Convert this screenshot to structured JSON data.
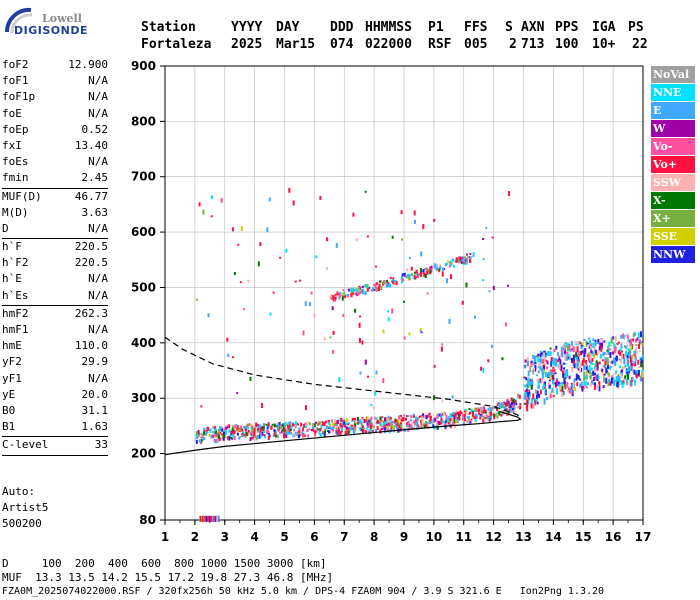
{
  "logo": {
    "line1": "Lowell",
    "line2": "DIGISONDE"
  },
  "header": {
    "labels": [
      "Station",
      "YYYY",
      "DAY",
      "DDD",
      "HHMMSS",
      "P1",
      "FFS",
      "S",
      "AXN",
      "PPS",
      "IGA",
      "PS"
    ],
    "values": [
      "Fortaleza",
      "2025",
      "Mar15",
      "074",
      "022000",
      "RSF",
      "005",
      "2",
      "713",
      "100",
      "10+",
      "22"
    ]
  },
  "params": [
    {
      "group": [
        {
          "k": "foF2",
          "v": "12.900"
        },
        {
          "k": "foF1",
          "v": "N/A"
        },
        {
          "k": "foF1p",
          "v": "N/A"
        },
        {
          "k": "foE",
          "v": "N/A"
        },
        {
          "k": "foEp",
          "v": "0.52"
        },
        {
          "k": "fxI",
          "v": "13.40"
        },
        {
          "k": "foEs",
          "v": "N/A"
        },
        {
          "k": "fmin",
          "v": "2.45"
        }
      ]
    },
    {
      "group": [
        {
          "k": "MUF(D)",
          "v": "46.77"
        },
        {
          "k": "M(D)",
          "v": "3.63"
        },
        {
          "k": "D",
          "v": "N/A"
        }
      ]
    },
    {
      "group": [
        {
          "k": "h`F",
          "v": "220.5"
        },
        {
          "k": "h`F2",
          "v": "220.5"
        },
        {
          "k": "h`E",
          "v": "N/A"
        },
        {
          "k": "h`Es",
          "v": "N/A"
        }
      ]
    },
    {
      "group": [
        {
          "k": "hmF2",
          "v": "262.3"
        },
        {
          "k": "hmF1",
          "v": "N/A"
        },
        {
          "k": "hmE",
          "v": "110.0"
        },
        {
          "k": "yF2",
          "v": "29.9"
        },
        {
          "k": "yF1",
          "v": "N/A"
        },
        {
          "k": "yE",
          "v": "20.0"
        },
        {
          "k": "B0",
          "v": "31.1"
        },
        {
          "k": "B1",
          "v": "1.63"
        }
      ]
    },
    {
      "group": [
        {
          "k": "C-level",
          "v": "33"
        }
      ]
    }
  ],
  "auto": {
    "line1": "Auto:",
    "line2": "Artist5",
    "line3": "500200"
  },
  "footer": {
    "line1": "D     100  200  400  600  800 1000 1500 3000 [km]",
    "line2": "MUF  13.3 13.5 14.2 15.5 17.2 19.8 27.3 46.8 [MHz]",
    "line3": "FZA0M_2025074022000.RSF / 320fx256h 50 kHz 5.0 km / DPS-4 FZA0M 904 / 3.9 S 321.6 E   Ion2Png 1.3.20"
  },
  "legend": [
    {
      "label": "NoVal",
      "color": "#a0a0a0"
    },
    {
      "label": "NNE",
      "color": "#00e0ff"
    },
    {
      "label": "E",
      "color": "#40a8ff"
    },
    {
      "label": "W",
      "color": "#a000a8"
    },
    {
      "label": "Vo-",
      "color": "#ff50a0"
    },
    {
      "label": "Vo+",
      "color": "#ff1040"
    },
    {
      "label": "SSW",
      "color": "#ffb0b0"
    },
    {
      "label": "X-",
      "color": "#007800"
    },
    {
      "label": "X+",
      "color": "#78b040"
    },
    {
      "label": "SSE",
      "color": "#d0d000"
    },
    {
      "label": "NNW",
      "color": "#2020e0"
    }
  ],
  "chart_data": {
    "type": "scatter",
    "title": "",
    "xlabel": "",
    "ylabel": "",
    "xlim": [
      1,
      17
    ],
    "ylim": [
      80,
      900
    ],
    "xticks": [
      1,
      2,
      3,
      4,
      5,
      6,
      7,
      8,
      9,
      10,
      11,
      12,
      13,
      14,
      15,
      16,
      17
    ],
    "yticks": [
      80,
      200,
      300,
      400,
      500,
      600,
      700,
      800,
      900
    ],
    "grid": true,
    "legend_placement": "right",
    "echo_traces": [
      {
        "name": "F-trace",
        "x": [
          2.0,
          3.0,
          4.0,
          5.0,
          6.0,
          7.0,
          8.0,
          9.0,
          10.0,
          11.0,
          12.0,
          12.6,
          12.9
        ],
        "y": [
          236,
          240,
          243,
          245,
          248,
          252,
          255,
          258,
          262,
          268,
          278,
          290,
          300
        ]
      },
      {
        "name": "F-multihop",
        "x": [
          6.5,
          7.5,
          8.5,
          9.5,
          10.5,
          11.3
        ],
        "y": [
          485,
          497,
          512,
          528,
          545,
          558
        ]
      },
      {
        "name": "spread-F",
        "x": [
          13.0,
          14.0,
          15.0,
          16.0,
          17.0
        ],
        "y": [
          330,
          350,
          365,
          370,
          378
        ]
      },
      {
        "name": "low-echo",
        "x": [
          2.1,
          2.5,
          2.9
        ],
        "y": [
          82,
          82,
          82
        ]
      }
    ],
    "profile_solid": {
      "x": [
        1.0,
        2.0,
        3.0,
        5.0,
        7.0,
        9.0,
        10.5,
        11.5,
        12.3,
        12.8,
        12.9,
        12.8,
        12.5,
        12.2
      ],
      "y": [
        198,
        206,
        213,
        223,
        233,
        243,
        250,
        254,
        258,
        260,
        262,
        266,
        271,
        276
      ]
    },
    "profile_dashed": {
      "x": [
        1.0,
        1.6,
        2.6,
        4.0,
        6.0,
        8.5,
        10.5,
        12.0,
        12.8,
        12.9
      ],
      "y": [
        410,
        388,
        362,
        342,
        325,
        310,
        298,
        285,
        270,
        262
      ]
    }
  }
}
